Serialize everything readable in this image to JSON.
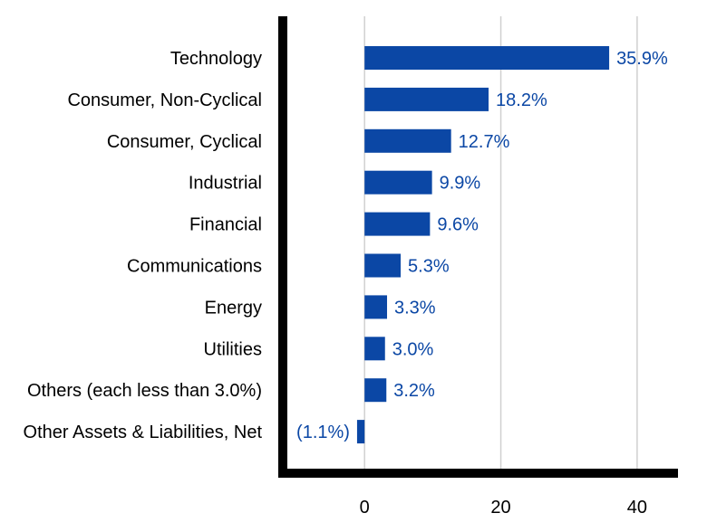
{
  "chart_data": {
    "type": "bar",
    "orientation": "horizontal",
    "categories": [
      "Technology",
      "Consumer, Non-Cyclical",
      "Consumer, Cyclical",
      "Industrial",
      "Financial",
      "Communications",
      "Energy",
      "Utilities",
      "Others (each less than 3.0%)",
      "Other Assets & Liabilities, Net"
    ],
    "values": [
      35.9,
      18.2,
      12.7,
      9.9,
      9.6,
      5.3,
      3.3,
      3.0,
      3.2,
      -1.1
    ],
    "value_labels": [
      "35.9%",
      "18.2%",
      "12.7%",
      "9.9%",
      "9.6%",
      "5.3%",
      "3.3%",
      "3.0%",
      "3.2%",
      "(1.1%)"
    ],
    "xlim": [
      -12,
      46
    ],
    "xticks": [
      0,
      20,
      40
    ],
    "grid": "vertical",
    "legend": "none",
    "colors": {
      "bar": "#0b47a5",
      "data_label": "#0b47a5",
      "grid": "#d0d0d0",
      "axis": "#000000"
    }
  }
}
